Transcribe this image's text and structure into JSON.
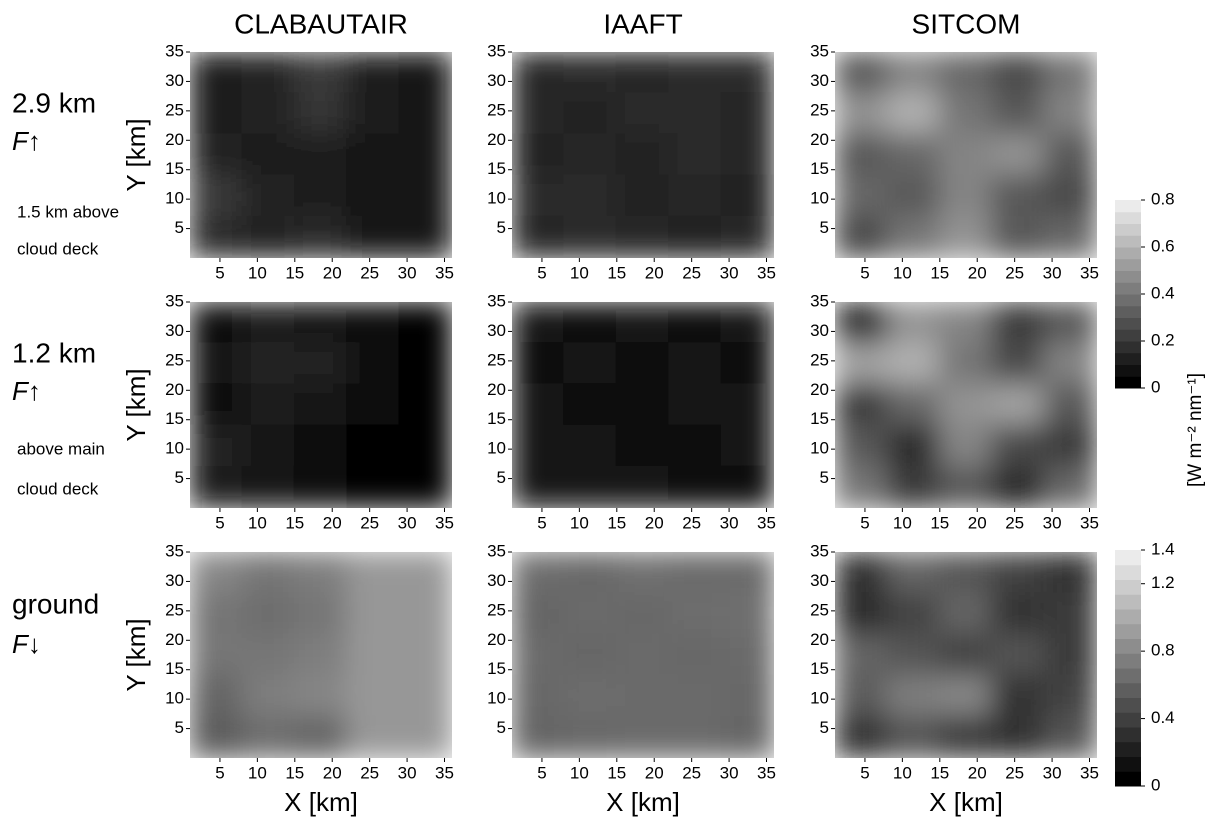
{
  "columns": [
    "CLABAUTAIR",
    "IAAFT",
    "SITCOM"
  ],
  "rows": [
    {
      "label": "2.9 km",
      "flux_symbol": "F",
      "flux_arrow": "↑",
      "note": [
        "1.5 km above",
        "cloud deck"
      ]
    },
    {
      "label": "1.2 km",
      "flux_symbol": "F",
      "flux_arrow": "↑",
      "note": [
        "above main",
        "cloud deck"
      ]
    },
    {
      "label": "ground",
      "flux_symbol": "F",
      "flux_arrow": "↓",
      "note": []
    }
  ],
  "colorbar_label": "[W m⁻² nm⁻¹]",
  "colorbars": [
    {
      "lim": [
        0,
        0.8
      ],
      "ticks": [
        0,
        0.2,
        0.4,
        0.6,
        0.8
      ]
    },
    {
      "lim": [
        0,
        1.4
      ],
      "ticks": [
        0,
        0.4,
        0.8,
        1.2,
        1.4
      ]
    }
  ],
  "chart_data": [
    {
      "type": "heatmap",
      "ylabel": "Y [km]",
      "xlim": [
        1,
        36
      ],
      "ylim": [
        0,
        35
      ],
      "xticks": [
        5,
        10,
        15,
        20,
        25,
        30,
        35
      ],
      "yticks": [
        5,
        10,
        15,
        20,
        25,
        30,
        35
      ],
      "clim": [
        0,
        0.8
      ],
      "z": [
        [
          0.1,
          0.12,
          0.2,
          0.1,
          0.08
        ],
        [
          0.1,
          0.12,
          0.18,
          0.1,
          0.08
        ],
        [
          0.12,
          0.1,
          0.1,
          0.08,
          0.07
        ],
        [
          0.2,
          0.12,
          0.1,
          0.08,
          0.07
        ],
        [
          0.15,
          0.12,
          0.14,
          0.08,
          0.07
        ]
      ]
    },
    {
      "type": "heatmap",
      "xlim": [
        1,
        36
      ],
      "ylim": [
        0,
        35
      ],
      "xticks": [
        5,
        10,
        15,
        20,
        25,
        30,
        35
      ],
      "yticks": [
        5,
        10,
        15,
        20,
        25,
        30,
        35
      ],
      "clim": [
        0,
        0.8
      ],
      "z": [
        [
          0.13,
          0.14,
          0.13,
          0.14,
          0.15
        ],
        [
          0.13,
          0.12,
          0.14,
          0.14,
          0.13
        ],
        [
          0.12,
          0.13,
          0.12,
          0.14,
          0.13
        ],
        [
          0.14,
          0.15,
          0.12,
          0.13,
          0.12
        ],
        [
          0.13,
          0.14,
          0.13,
          0.12,
          0.13
        ]
      ]
    },
    {
      "type": "heatmap",
      "xlim": [
        1,
        36
      ],
      "ylim": [
        0,
        35
      ],
      "xticks": [
        5,
        10,
        15,
        20,
        25,
        30,
        35
      ],
      "yticks": [
        5,
        10,
        15,
        20,
        25,
        30,
        35
      ],
      "clim": [
        0,
        0.8
      ],
      "z": [
        [
          0.3,
          0.45,
          0.35,
          0.25,
          0.4
        ],
        [
          0.5,
          0.6,
          0.4,
          0.3,
          0.45
        ],
        [
          0.3,
          0.35,
          0.45,
          0.5,
          0.3
        ],
        [
          0.35,
          0.3,
          0.45,
          0.3,
          0.25
        ],
        [
          0.25,
          0.4,
          0.5,
          0.3,
          0.35
        ]
      ]
    },
    {
      "type": "heatmap",
      "ylabel": "Y [km]",
      "xlim": [
        1,
        36
      ],
      "ylim": [
        0,
        35
      ],
      "xticks": [
        5,
        10,
        15,
        20,
        25,
        30,
        35
      ],
      "yticks": [
        5,
        10,
        15,
        20,
        25,
        30,
        35
      ],
      "clim": [
        0,
        0.8
      ],
      "z": [
        [
          0.05,
          0.1,
          0.08,
          0.03,
          0.02
        ],
        [
          0.06,
          0.12,
          0.12,
          0.03,
          0.02
        ],
        [
          0.05,
          0.1,
          0.08,
          0.03,
          0.02
        ],
        [
          0.12,
          0.08,
          0.05,
          0.02,
          0.02
        ],
        [
          0.1,
          0.06,
          0.05,
          0.02,
          0.02
        ]
      ]
    },
    {
      "type": "heatmap",
      "xlim": [
        1,
        36
      ],
      "ylim": [
        0,
        35
      ],
      "xticks": [
        5,
        10,
        15,
        20,
        25,
        30,
        35
      ],
      "yticks": [
        5,
        10,
        15,
        20,
        25,
        30,
        35
      ],
      "clim": [
        0,
        0.8
      ],
      "z": [
        [
          0.06,
          0.05,
          0.06,
          0.05,
          0.07
        ],
        [
          0.05,
          0.06,
          0.05,
          0.06,
          0.05
        ],
        [
          0.06,
          0.05,
          0.05,
          0.06,
          0.06
        ],
        [
          0.07,
          0.06,
          0.05,
          0.05,
          0.06
        ],
        [
          0.06,
          0.07,
          0.06,
          0.05,
          0.05
        ]
      ]
    },
    {
      "type": "heatmap",
      "xlim": [
        1,
        36
      ],
      "ylim": [
        0,
        35
      ],
      "xticks": [
        5,
        10,
        15,
        20,
        25,
        30,
        35
      ],
      "yticks": [
        5,
        10,
        15,
        20,
        25,
        30,
        35
      ],
      "clim": [
        0,
        0.8
      ],
      "z": [
        [
          0.15,
          0.5,
          0.45,
          0.2,
          0.3
        ],
        [
          0.55,
          0.6,
          0.4,
          0.25,
          0.45
        ],
        [
          0.2,
          0.35,
          0.5,
          0.55,
          0.3
        ],
        [
          0.3,
          0.15,
          0.45,
          0.25,
          0.2
        ],
        [
          0.4,
          0.2,
          0.3,
          0.15,
          0.35
        ]
      ]
    },
    {
      "type": "heatmap",
      "xlabel": "X [km]",
      "ylabel": "Y [km]",
      "xlim": [
        1,
        36
      ],
      "ylim": [
        0,
        35
      ],
      "xticks": [
        5,
        10,
        15,
        20,
        25,
        30,
        35
      ],
      "yticks": [
        5,
        10,
        15,
        20,
        25,
        30,
        35
      ],
      "clim": [
        0,
        1.4
      ],
      "z": [
        [
          0.8,
          0.7,
          0.75,
          0.9,
          0.9
        ],
        [
          0.7,
          0.65,
          0.7,
          0.9,
          0.9
        ],
        [
          0.7,
          0.7,
          0.75,
          0.9,
          0.9
        ],
        [
          0.6,
          0.75,
          0.8,
          0.9,
          0.9
        ],
        [
          0.55,
          0.65,
          0.6,
          0.9,
          0.9
        ]
      ]
    },
    {
      "type": "heatmap",
      "xlabel": "X [km]",
      "xlim": [
        1,
        36
      ],
      "ylim": [
        0,
        35
      ],
      "xticks": [
        5,
        10,
        15,
        20,
        25,
        30,
        35
      ],
      "yticks": [
        5,
        10,
        15,
        20,
        25,
        30,
        35
      ],
      "clim": [
        0,
        1.4
      ],
      "z": [
        [
          0.65,
          0.62,
          0.66,
          0.64,
          0.63
        ],
        [
          0.6,
          0.64,
          0.62,
          0.65,
          0.66
        ],
        [
          0.63,
          0.61,
          0.64,
          0.62,
          0.64
        ],
        [
          0.62,
          0.65,
          0.63,
          0.64,
          0.62
        ],
        [
          0.6,
          0.62,
          0.64,
          0.63,
          0.61
        ]
      ]
    },
    {
      "type": "heatmap",
      "xlabel": "X [km]",
      "xlim": [
        1,
        36
      ],
      "ylim": [
        0,
        35
      ],
      "xticks": [
        5,
        10,
        15,
        20,
        25,
        30,
        35
      ],
      "yticks": [
        5,
        10,
        15,
        20,
        25,
        30,
        35
      ],
      "clim": [
        0,
        1.4
      ],
      "z": [
        [
          0.3,
          0.6,
          0.5,
          0.4,
          0.3
        ],
        [
          0.25,
          0.4,
          0.6,
          0.3,
          0.35
        ],
        [
          0.6,
          0.5,
          0.4,
          0.5,
          0.35
        ],
        [
          0.55,
          0.75,
          0.8,
          0.3,
          0.4
        ],
        [
          0.3,
          0.5,
          0.35,
          0.3,
          0.5
        ]
      ]
    }
  ]
}
